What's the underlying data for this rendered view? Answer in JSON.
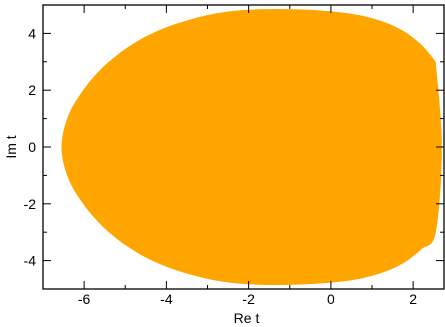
{
  "chart_data": {
    "type": "area",
    "title": "",
    "xlabel": "Re t",
    "ylabel": "Im t",
    "xlim": [
      -7.0,
      2.75
    ],
    "ylim": [
      -5.0,
      5.0
    ],
    "xticks": [
      -6,
      -4,
      -2,
      0,
      2
    ],
    "yticks": [
      -4,
      -2,
      0,
      2,
      4
    ],
    "xtick_labels": [
      "-6",
      "-4",
      "-2",
      "0",
      "2"
    ],
    "ytick_labels": [
      "-4",
      "-2",
      "0",
      "2",
      "4"
    ],
    "grid": false,
    "fill_color": "#FFA500",
    "series": [
      {
        "x": [
          2.55,
          2.2,
          1.75,
          1.2,
          0.55,
          -0.2,
          -0.9,
          -1.75,
          -2.6,
          -3.4,
          -4.2,
          -4.9,
          -5.55,
          -6.05,
          -6.4,
          -6.55,
          -6.4,
          -6.05,
          -5.55,
          -4.9,
          -4.2,
          -3.4,
          -2.6,
          -1.75,
          -0.9,
          -0.2,
          0.55,
          1.2,
          1.75,
          2.2,
          2.55,
          2.7,
          2.55
        ],
        "y": [
          3.0,
          3.6,
          4.1,
          4.45,
          4.68,
          4.8,
          4.85,
          4.85,
          4.75,
          4.5,
          4.1,
          3.55,
          2.8,
          1.95,
          1.05,
          0.0,
          -1.05,
          -1.95,
          -2.8,
          -3.55,
          -4.1,
          -4.5,
          -4.75,
          -4.85,
          -4.85,
          -4.8,
          -4.68,
          -4.45,
          -4.1,
          -3.6,
          -3.0,
          0.0,
          3.0
        ]
      }
    ]
  }
}
